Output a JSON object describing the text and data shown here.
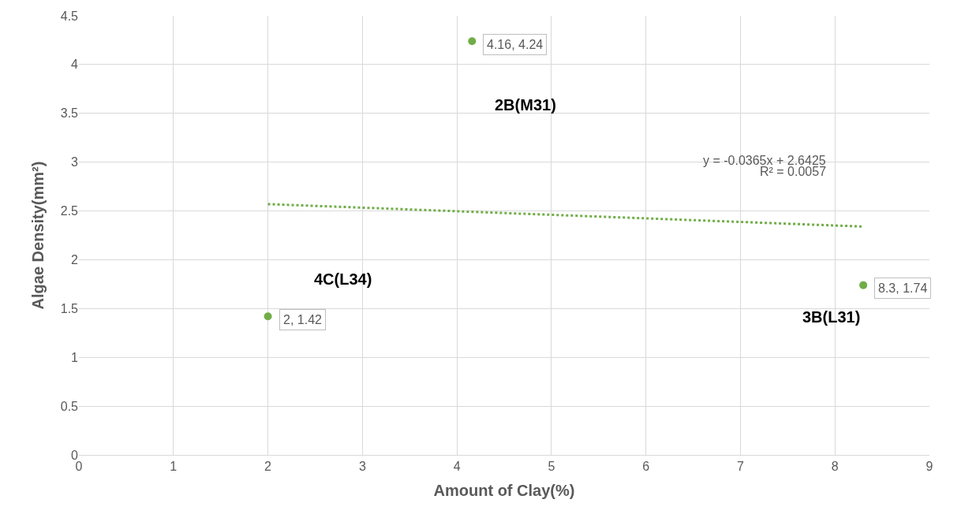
{
  "chart_data": {
    "type": "scatter",
    "xlabel": "Amount of Clay(%)",
    "ylabel": "Algae Density(mm²)",
    "xlim": [
      0,
      9
    ],
    "xticks": [
      0,
      1,
      2,
      3,
      4,
      5,
      6,
      7,
      8,
      9
    ],
    "ylim": [
      0,
      4.5
    ],
    "yticks": [
      0,
      0.5,
      1,
      1.5,
      2,
      2.5,
      3,
      3.5,
      4,
      4.5
    ],
    "grid": true,
    "marker": "circle",
    "series": [
      {
        "color": "#70ad47",
        "x": [
          2,
          4.16,
          8.3
        ],
        "values": [
          1.42,
          4.24,
          1.74
        ],
        "value_labels": [
          "2, 1.42",
          "4.16, 4.24",
          "8.3, 1.74"
        ]
      },
      {
        "type": "line",
        "color": "#70ad47",
        "x": [
          2,
          8.3
        ],
        "values": [
          2.57,
          2.34
        ],
        "line_style": "dotted",
        "marker": "none"
      }
    ],
    "annotations": [
      "2B(M31)",
      "4C(L34)",
      "3B(L31)",
      "y = -0.0365x + 2.6425",
      "R² = 0.0057"
    ]
  }
}
